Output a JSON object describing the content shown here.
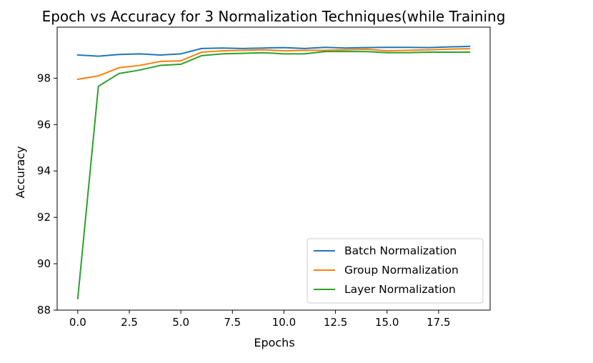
{
  "chart_data": {
    "type": "line",
    "title": "Epoch vs Accuracy for 3 Normalization Techniques(while Training",
    "xlabel": "Epochs",
    "ylabel": "Accuracy",
    "xlim": [
      -1,
      20
    ],
    "ylim": [
      88,
      100.2
    ],
    "xticks": [
      0,
      2.5,
      5,
      7.5,
      10,
      12.5,
      15,
      17.5
    ],
    "xtick_labels": [
      "0.0",
      "2.5",
      "5.0",
      "7.5",
      "10.0",
      "12.5",
      "15.0",
      "17.5"
    ],
    "yticks": [
      88,
      90,
      92,
      94,
      96,
      98
    ],
    "ytick_labels": [
      "88",
      "90",
      "92",
      "94",
      "96",
      "98"
    ],
    "grid": false,
    "legend_position": "lower-right",
    "x": [
      0,
      1,
      2,
      3,
      4,
      5,
      6,
      7,
      8,
      9,
      10,
      11,
      12,
      13,
      14,
      15,
      16,
      17,
      18,
      19
    ],
    "series": [
      {
        "name": "Batch Normalization",
        "color": "#1f77b4",
        "values": [
          99.0,
          98.95,
          99.02,
          99.05,
          99.0,
          99.05,
          99.28,
          99.3,
          99.28,
          99.3,
          99.32,
          99.28,
          99.33,
          99.3,
          99.32,
          99.33,
          99.33,
          99.32,
          99.35,
          99.37
        ]
      },
      {
        "name": "Group Normalization",
        "color": "#ff7f0e",
        "values": [
          97.95,
          98.1,
          98.45,
          98.55,
          98.72,
          98.75,
          99.12,
          99.18,
          99.2,
          99.22,
          99.18,
          99.2,
          99.2,
          99.22,
          99.25,
          99.18,
          99.2,
          99.22,
          99.25,
          99.27
        ]
      },
      {
        "name": "Layer Normalization",
        "color": "#2ca02c",
        "values": [
          88.5,
          97.65,
          98.2,
          98.35,
          98.55,
          98.6,
          98.97,
          99.05,
          99.07,
          99.1,
          99.05,
          99.05,
          99.15,
          99.15,
          99.15,
          99.1,
          99.1,
          99.12,
          99.12,
          99.12
        ]
      }
    ]
  }
}
